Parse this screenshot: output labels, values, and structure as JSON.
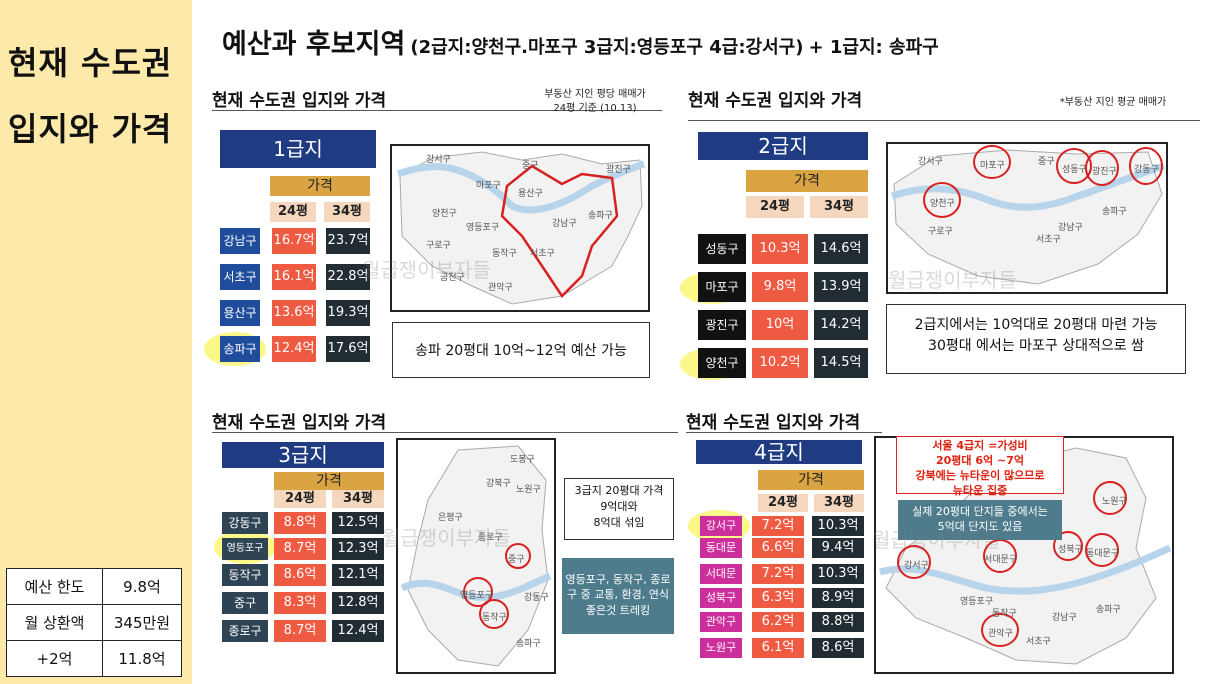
{
  "sidebar": {
    "title_line1": "현재 수도권",
    "title_line2": "입지와 가격",
    "budget": [
      {
        "label": "예산 한도",
        "value": "9.8억"
      },
      {
        "label": "월 상환액",
        "value": "345만원"
      },
      {
        "label": "+2억",
        "value": "11.8억"
      }
    ]
  },
  "heading": {
    "main": "예산과 후보지역",
    "detail": "(2급지:양천구.마포구 3급지:영등포구 4급:강서구)",
    "extra": "+ 1급지: 송파구"
  },
  "common": {
    "section_title": "현재 수도권 입지와 가격",
    "price_label": "가격",
    "size24": "24평",
    "size34": "34평",
    "watermark": "월급쟁이부자들"
  },
  "q1": {
    "note": "부동산 지인 평당 매매가\n24평 기준 (10.13)",
    "tier": "1급지",
    "rows": [
      {
        "district": "강남구",
        "p24": "16.7억",
        "p34": "23.7억"
      },
      {
        "district": "서초구",
        "p24": "16.1억",
        "p34": "22.8억"
      },
      {
        "district": "용산구",
        "p24": "13.6억",
        "p34": "19.3억"
      },
      {
        "district": "송파구",
        "p24": "12.4억",
        "p34": "17.6억"
      }
    ],
    "callout": "송파 20평대 10억~12억 예산 가능",
    "map_labels": [
      "강서구",
      "양천구",
      "구로구",
      "금천구",
      "영등포구",
      "동작구",
      "관악구",
      "마포구",
      "중구",
      "용산구",
      "광진구",
      "송파구",
      "강남구",
      "서초구"
    ]
  },
  "q2": {
    "note": "*부동산 지인 평균 매매가",
    "tier": "2급지",
    "rows": [
      {
        "district": "성동구",
        "p24": "10.3억",
        "p34": "14.6억"
      },
      {
        "district": "마포구",
        "p24": "9.8억",
        "p34": "13.9억"
      },
      {
        "district": "광진구",
        "p24": "10억",
        "p34": "14.2억"
      },
      {
        "district": "양천구",
        "p24": "10.2억",
        "p34": "14.5억"
      }
    ],
    "callout_line1": "2급지에서는 10억대로 20평대 마련 가능",
    "callout_line2": "30평대 에서는 마포구 상대적으로 쌈",
    "map_labels": [
      "강서구",
      "마포구",
      "양천구",
      "구로구",
      "중구",
      "성동구",
      "광진구",
      "강동구",
      "강남구",
      "서초구",
      "송파구"
    ]
  },
  "q3": {
    "tier": "3급지",
    "rows": [
      {
        "district": "강동구",
        "p24": "8.8억",
        "p34": "12.5억"
      },
      {
        "district": "영등포구",
        "p24": "8.7억",
        "p34": "12.3억"
      },
      {
        "district": "동작구",
        "p24": "8.6억",
        "p34": "12.1억"
      },
      {
        "district": "중구",
        "p24": "8.3억",
        "p34": "12.8억"
      },
      {
        "district": "종로구",
        "p24": "8.7억",
        "p34": "12.4억"
      }
    ],
    "callout": "3급지 20평대 가격\n9억대와\n8억대 섞임",
    "blue_note": "영등포구, 동작구, 종로\n구 중 교통, 환경, 연식\n좋은것 트레킹",
    "map_labels": [
      "도봉구",
      "노원구",
      "강북구",
      "은평구",
      "종로구",
      "중구",
      "영등포구",
      "동작구",
      "강동구",
      "송파구"
    ]
  },
  "q4": {
    "tier": "4급지",
    "rows": [
      {
        "district": "강서구",
        "p24": "7.2억",
        "p34": "10.3억"
      },
      {
        "district": "동대문",
        "p24": "6.6억",
        "p34": "9.4억"
      },
      {
        "district": "서대문",
        "p24": "7.2억",
        "p34": "10.3억"
      },
      {
        "district": "성북구",
        "p24": "6.3억",
        "p34": "8.9억"
      },
      {
        "district": "관악구",
        "p24": "6.2억",
        "p34": "8.8억"
      },
      {
        "district": "노원구",
        "p24": "6.1억",
        "p34": "8.6억"
      }
    ],
    "red_note": "서울 4급지 =가성비\n20평대 6억 ~7억\n강북에는 뉴타운이 많으므로\n뉴타운 집중",
    "blue_note": "실제 20평대 단지들 중에서는\n5억대 단지도 있음",
    "map_labels": [
      "노원구",
      "강서구",
      "동대문구",
      "성북구",
      "서대문구",
      "관악구",
      "영등포구",
      "동작구",
      "강남구",
      "송파구",
      "서초구"
    ]
  },
  "colors": {
    "sidebar_bg": "#fde9a9",
    "tier_blue": "#1f3b82",
    "price_gold": "#d9a441",
    "price24_red": "#ee5a42",
    "price34_dark": "#222c33",
    "highlight_yellow": "#f7f028",
    "map_red": "#d92020",
    "note_blue": "#4f7c8d"
  }
}
